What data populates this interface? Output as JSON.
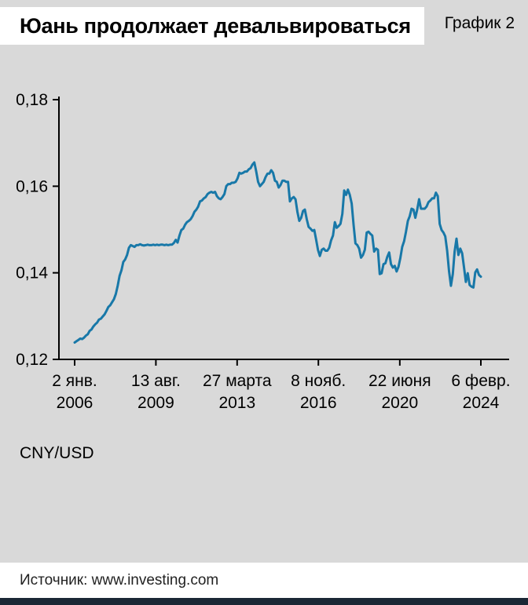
{
  "header": {
    "title": "Юань продолжает девальвироваться",
    "chart_label": "График 2"
  },
  "footer": {
    "source": "Источник: www.investing.com"
  },
  "colors": {
    "background": "#d9d9d9",
    "panel": "#ffffff",
    "line": "#1878a8",
    "axis": "#000000",
    "bottom_bar": "#1b2735",
    "source_text": "#222222"
  },
  "chart_data": {
    "type": "line",
    "title": "Юань продолжает девальвироваться",
    "ylabel": "CNY/USD",
    "xlabel": "",
    "grid": false,
    "legend": false,
    "ylim": [
      0.12,
      0.18
    ],
    "yticks": [
      {
        "value": 0.18,
        "label": "0,18"
      },
      {
        "value": 0.16,
        "label": "0,16"
      },
      {
        "value": 0.14,
        "label": "0,14"
      },
      {
        "value": 0.12,
        "label": "0,12"
      }
    ],
    "xticks": [
      {
        "t": 0,
        "line1": "2 янв.",
        "line2": "2006"
      },
      {
        "t": 43.4,
        "line1": "13 авг.",
        "line2": "2009"
      },
      {
        "t": 86.8,
        "line1": "27 марта",
        "line2": "2013"
      },
      {
        "t": 130.2,
        "line1": "8 нояб.",
        "line2": "2016"
      },
      {
        "t": 173.7,
        "line1": "22 июня",
        "line2": "2020"
      },
      {
        "t": 217,
        "line1": "6 февр.",
        "line2": "2024"
      }
    ],
    "x_unit": "monthly values from Jan 2006 to Feb 2024",
    "values": [
      0.1239,
      0.1242,
      0.1245,
      0.1248,
      0.1247,
      0.125,
      0.1255,
      0.1258,
      0.1266,
      0.1269,
      0.1276,
      0.1281,
      0.1285,
      0.1292,
      0.1294,
      0.1299,
      0.1304,
      0.1312,
      0.1321,
      0.1325,
      0.1332,
      0.1339,
      0.1351,
      0.137,
      0.1393,
      0.1406,
      0.1425,
      0.1431,
      0.1441,
      0.1458,
      0.1464,
      0.1462,
      0.146,
      0.1464,
      0.1464,
      0.1466,
      0.1464,
      0.1463,
      0.1464,
      0.1465,
      0.1464,
      0.1464,
      0.1465,
      0.1464,
      0.1465,
      0.1464,
      0.1465,
      0.1465,
      0.1464,
      0.1465,
      0.1464,
      0.1465,
      0.1465,
      0.1469,
      0.1476,
      0.147,
      0.1486,
      0.1499,
      0.1502,
      0.1511,
      0.1517,
      0.152,
      0.1524,
      0.1531,
      0.1541,
      0.1546,
      0.1553,
      0.1565,
      0.1567,
      0.1572,
      0.1575,
      0.1582,
      0.1585,
      0.1587,
      0.1585,
      0.1587,
      0.1577,
      0.1572,
      0.157,
      0.1575,
      0.1582,
      0.16,
      0.1605,
      0.1605,
      0.1608,
      0.1608,
      0.161,
      0.1618,
      0.1631,
      0.1629,
      0.1631,
      0.1634,
      0.1634,
      0.1639,
      0.1642,
      0.165,
      0.1655,
      0.1634,
      0.161,
      0.16,
      0.1605,
      0.161,
      0.1621,
      0.1629,
      0.1629,
      0.1637,
      0.1631,
      0.1613,
      0.161,
      0.1597,
      0.1603,
      0.1613,
      0.1613,
      0.161,
      0.161,
      0.1565,
      0.1572,
      0.1575,
      0.157,
      0.1541,
      0.152,
      0.1527,
      0.1543,
      0.1546,
      0.1524,
      0.1506,
      0.1502,
      0.1497,
      0.1499,
      0.1477,
      0.1453,
      0.1439,
      0.1453,
      0.1456,
      0.1451,
      0.1451,
      0.1458,
      0.1475,
      0.1486,
      0.1517,
      0.1504,
      0.1508,
      0.1513,
      0.1536,
      0.159,
      0.158,
      0.1592,
      0.158,
      0.156,
      0.1511,
      0.1468,
      0.1464,
      0.1456,
      0.1435,
      0.1441,
      0.1453,
      0.1493,
      0.1495,
      0.149,
      0.1486,
      0.1449,
      0.1456,
      0.1453,
      0.1397,
      0.1399,
      0.142,
      0.1422,
      0.1437,
      0.1447,
      0.142,
      0.1412,
      0.1416,
      0.1403,
      0.1414,
      0.1435,
      0.146,
      0.1473,
      0.1495,
      0.152,
      0.1531,
      0.1548,
      0.1546,
      0.1527,
      0.1546,
      0.157,
      0.1548,
      0.1548,
      0.1548,
      0.1553,
      0.1563,
      0.1567,
      0.1572,
      0.1572,
      0.1585,
      0.1577,
      0.1513,
      0.1499,
      0.1493,
      0.1484,
      0.1451,
      0.1404,
      0.137,
      0.1397,
      0.1449,
      0.1479,
      0.1441,
      0.1456,
      0.1445,
      0.1412,
      0.1379,
      0.1399,
      0.1372,
      0.1368,
      0.1366,
      0.1401,
      0.1408,
      0.1395,
      0.1391
    ]
  }
}
